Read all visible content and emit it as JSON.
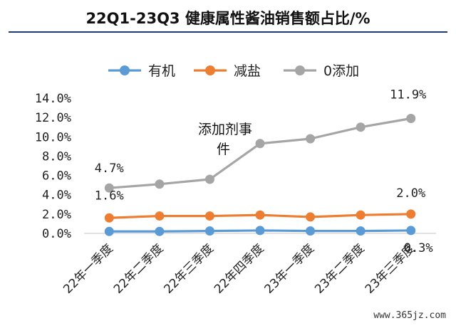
{
  "chart_data": {
    "type": "line",
    "title": "22Q1-23Q3 健康属性酱油销售额占比/%",
    "categories": [
      "22年一季度",
      "22年二季度",
      "22年三季度",
      "22年四季度",
      "23年一季度",
      "23年二季度",
      "23年三季度"
    ],
    "series": [
      {
        "name": "有机",
        "color": "#5b9bd5",
        "values": [
          0.2,
          0.2,
          0.25,
          0.3,
          0.25,
          0.25,
          0.3
        ]
      },
      {
        "name": "减盐",
        "color": "#ed7d31",
        "values": [
          1.6,
          1.8,
          1.8,
          1.9,
          1.7,
          1.9,
          2.0
        ]
      },
      {
        "name": "0添加",
        "color": "#a5a5a5",
        "values": [
          4.7,
          5.1,
          5.6,
          9.3,
          9.8,
          11.0,
          11.9
        ]
      }
    ],
    "ylim": [
      0,
      14
    ],
    "yticks": [
      "0.0%",
      "2.0%",
      "4.0%",
      "6.0%",
      "8.0%",
      "10.0%",
      "12.0%",
      "14.0%"
    ],
    "data_labels": [
      "4.7%",
      "1.6%",
      "11.9%",
      "2.0%",
      "0.3%"
    ],
    "annotation": "添加剂事件",
    "legend_position": "top",
    "grid": false
  },
  "watermark": "www.365jz.com"
}
